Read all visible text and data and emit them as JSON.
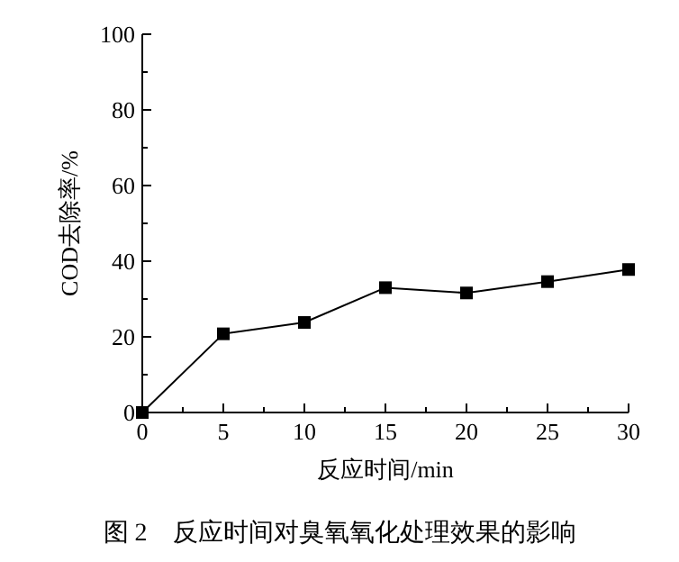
{
  "chart_data": {
    "type": "line",
    "xlabel": "反应时间/min",
    "ylabel": "COD去除率/%",
    "annotations": [
      "图 2    反应时间对臭氧氧化处理效果的影响"
    ],
    "x": [
      0,
      5,
      10,
      15,
      20,
      25,
      30
    ],
    "series": [
      {
        "color": "#000000",
        "values": [
          0,
          20.8,
          23.8,
          33,
          31.6,
          34.6,
          37.8
        ]
      }
    ],
    "xlim": [
      0,
      30
    ],
    "ylim": [
      0,
      100
    ],
    "xticks": [
      0,
      {
        "value": 2.5,
        "label": null
      },
      5,
      {
        "value": 7.5,
        "label": null
      },
      10,
      {
        "value": 12.5,
        "label": null
      },
      15,
      {
        "value": 17.5,
        "label": null
      },
      20,
      {
        "value": 22.5,
        "label": null
      },
      25,
      {
        "value": 27.5,
        "label": null
      },
      30
    ],
    "yticks": [
      0,
      {
        "value": 10,
        "label": null
      },
      20,
      {
        "value": 30,
        "label": null
      },
      40,
      {
        "value": 50,
        "label": null
      },
      60,
      {
        "value": 70,
        "label": null
      },
      80,
      {
        "value": 90,
        "label": null
      },
      100
    ],
    "marker": "square",
    "line_style": "solid",
    "grid": false
  }
}
